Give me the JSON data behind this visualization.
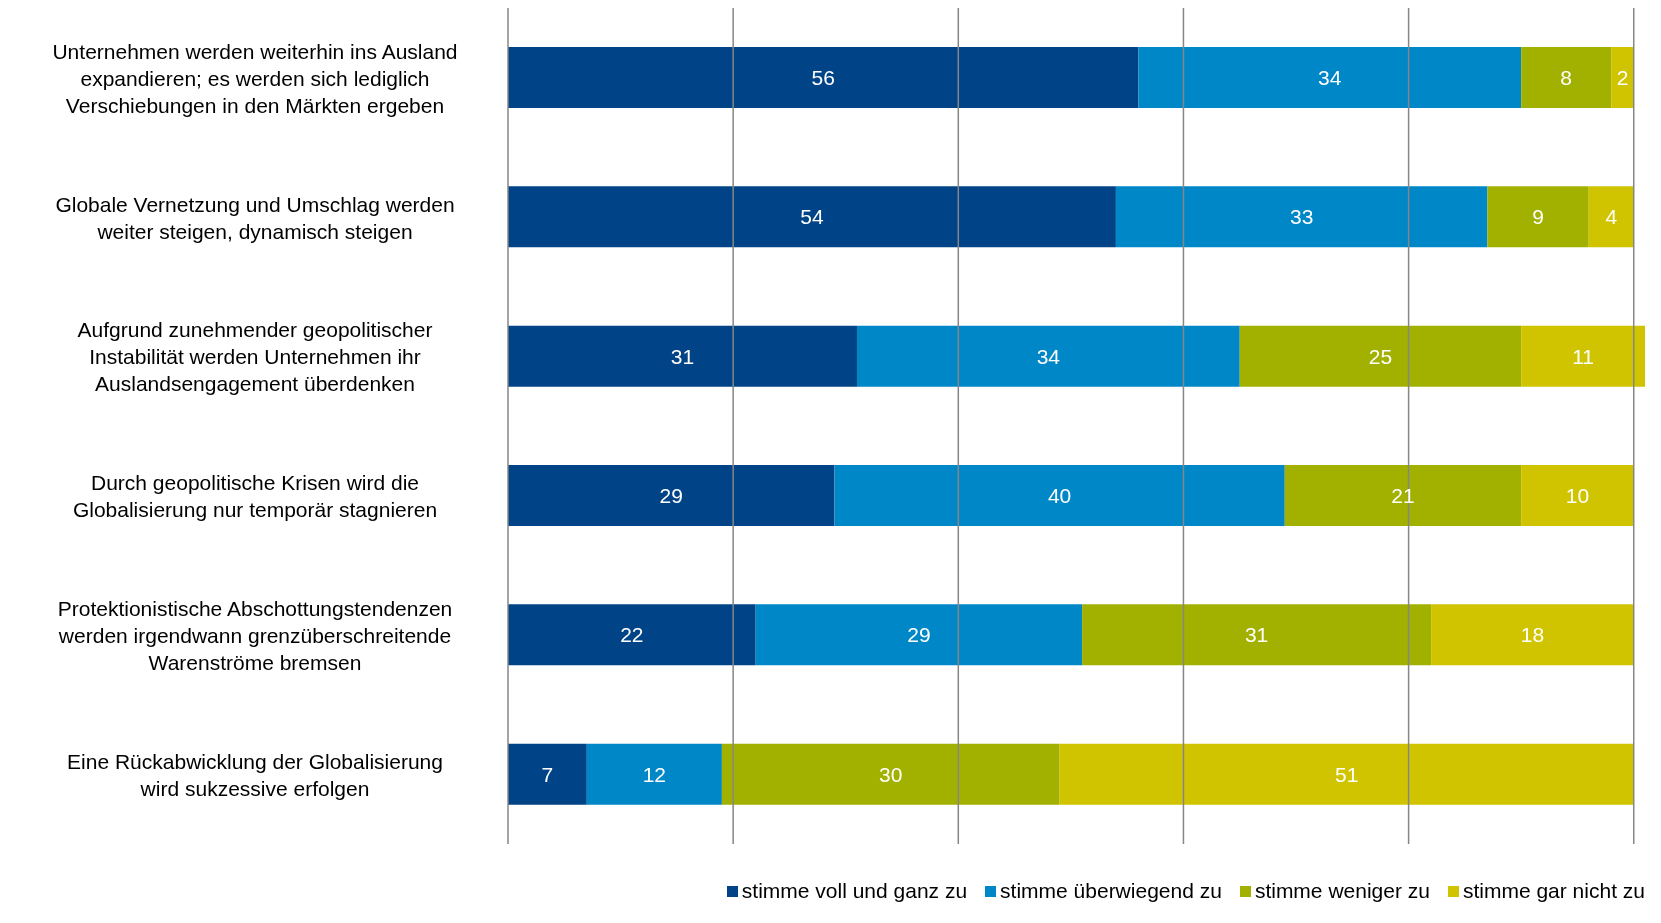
{
  "chart_data": {
    "type": "bar",
    "orientation": "horizontal",
    "stacked": true,
    "data_labels": true,
    "categories": [
      "Unternehmen werden weiterhin ins Ausland expandieren; es werden sich lediglich Verschiebungen in den Märkten ergeben",
      "Globale Vernetzung und Umschlag werden weiter steigen, dynamisch steigen",
      "Aufgrund zunehmender geopolitischer Instabilität werden Unternehmen ihr Auslandsengagement überdenken",
      "Durch geopolitische Krisen wird die Globalisierung nur temporär stagnieren",
      "Protektionistische Abschottungstendenzen werden irgendwann grenzüberschreitende Warenströme bremsen",
      "Eine Rückabwicklung der Globalisierung wird sukzessive erfolgen"
    ],
    "series": [
      {
        "name": "stimme voll und ganz zu",
        "color": "#004386",
        "values": [
          56,
          54,
          31,
          29,
          22,
          7
        ]
      },
      {
        "name": "stimme überwiegend zu",
        "color": "#0087c8",
        "values": [
          34,
          33,
          34,
          40,
          29,
          12
        ]
      },
      {
        "name": "stimme weniger zu",
        "color": "#a2b100",
        "values": [
          8,
          9,
          25,
          21,
          31,
          30
        ]
      },
      {
        "name": "stimme gar nicht zu",
        "color": "#d0c400",
        "values": [
          2,
          4,
          11,
          10,
          18,
          51
        ]
      }
    ],
    "xlim": [
      0,
      101
    ],
    "xticks": [
      {
        "value": 0,
        "label": null
      },
      {
        "value": 20,
        "label": null
      },
      {
        "value": 40,
        "label": null
      },
      {
        "value": 60,
        "label": null
      },
      {
        "value": 80,
        "label": null
      },
      {
        "value": 100,
        "label": null
      }
    ],
    "grid": "x",
    "tick_labels": "y",
    "legend": "bottom right"
  }
}
